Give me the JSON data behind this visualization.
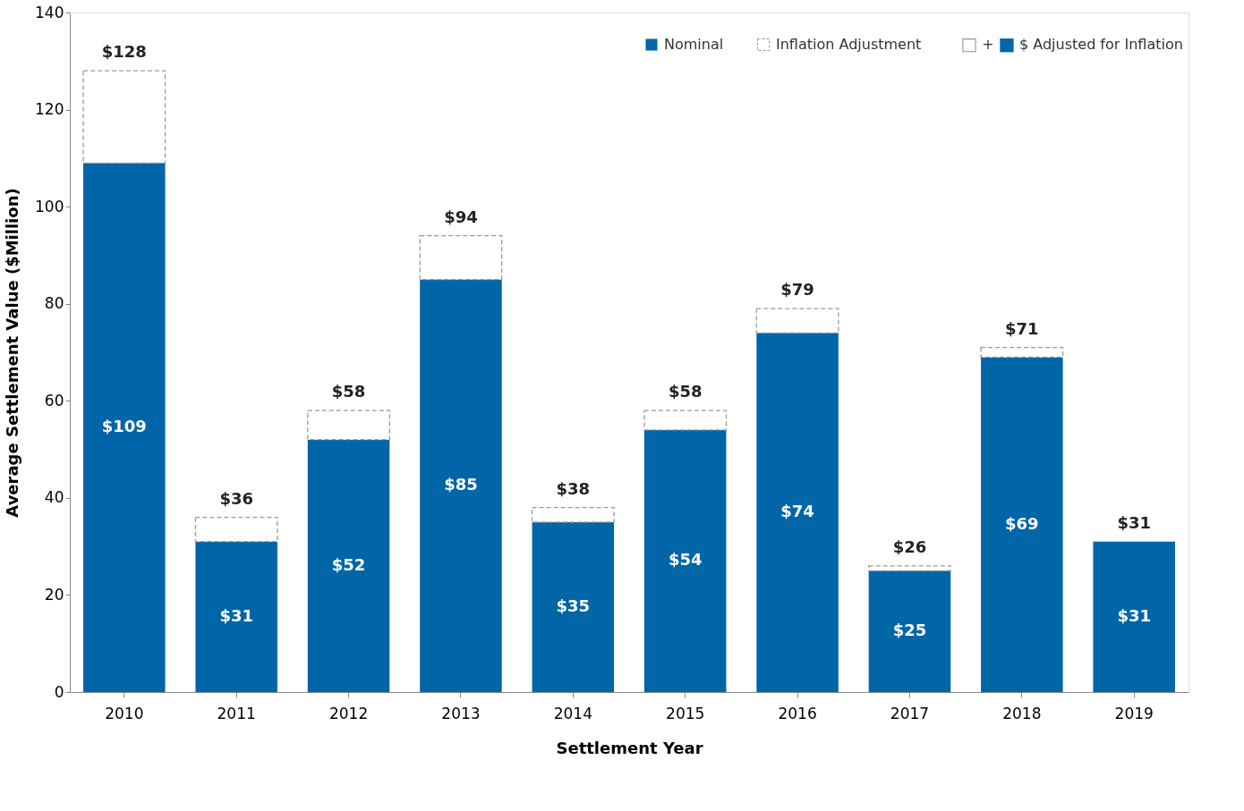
{
  "chart_data": {
    "type": "bar",
    "stacked": true,
    "xlabel": "Settlement Year",
    "ylabel": "Average Settlement Value ($Million)",
    "categories": [
      "2010",
      "2011",
      "2012",
      "2013",
      "2014",
      "2015",
      "2016",
      "2017",
      "2018",
      "2019"
    ],
    "series": [
      {
        "name": "Nominal",
        "color": "#0066a8",
        "values": [
          109,
          31,
          52,
          85,
          35,
          54,
          74,
          25,
          69,
          31
        ],
        "value_labels": [
          "$109",
          "$31",
          "$52",
          "$85",
          "$35",
          "$54",
          "$74",
          "$25",
          "$69",
          "$31"
        ]
      },
      {
        "name": "Inflation Adjustment",
        "color": "#ffffff",
        "line_style": "dashed",
        "values": [
          19,
          5,
          6,
          9,
          3,
          4,
          5,
          1,
          2,
          null
        ]
      }
    ],
    "totals": [
      "$128",
      "$36",
      "$58",
      "$94",
      "$38",
      "$58",
      "$79",
      "$26",
      "$71",
      "$31"
    ],
    "annotations": [
      "□",
      "+",
      "■",
      "$ Adjusted for Inflation"
    ],
    "ylim": [
      0,
      140
    ],
    "yticks": [
      0,
      20,
      40,
      60,
      80,
      100,
      120,
      140
    ],
    "grid": false,
    "legend": "top right"
  }
}
